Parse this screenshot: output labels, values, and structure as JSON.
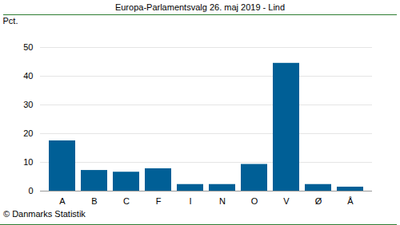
{
  "chart_data": {
    "type": "bar",
    "title": "Europa-Parlamentsvalg 26. maj 2019 - Lind",
    "y_label": "Pct.",
    "caption": "© Danmarks Statistik",
    "categories": [
      "A",
      "B",
      "C",
      "F",
      "I",
      "N",
      "O",
      "V",
      "Ø",
      "Å"
    ],
    "values": [
      17.5,
      7.2,
      6.6,
      7.8,
      2.3,
      2.3,
      9.3,
      44.5,
      2.3,
      1.4
    ],
    "color": "#005f96",
    "ylim": [
      0,
      50
    ],
    "yticks": [
      0,
      10,
      20,
      30,
      40,
      50
    ],
    "grid": true
  }
}
